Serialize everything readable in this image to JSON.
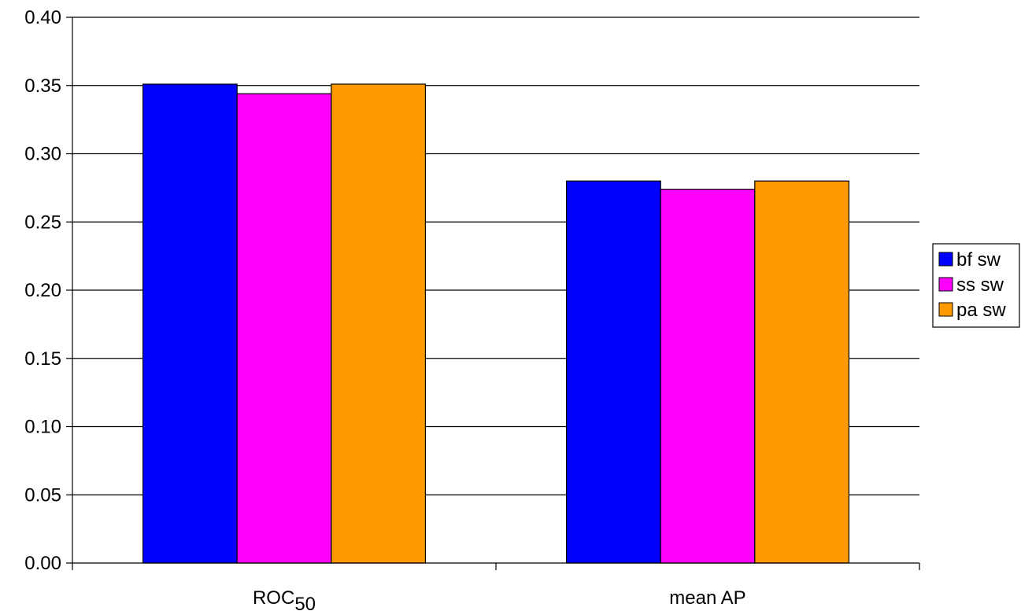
{
  "chart_data": {
    "type": "bar",
    "categories": [
      {
        "main": "ROC",
        "sub": "50"
      },
      {
        "main": "mean AP",
        "sub": ""
      }
    ],
    "series": [
      {
        "name": "bf sw",
        "color": "#0000FF",
        "values": [
          0.351,
          0.28
        ]
      },
      {
        "name": "ss sw",
        "color": "#FF00FF",
        "values": [
          0.344,
          0.274
        ]
      },
      {
        "name": "pa sw",
        "color": "#FF9900",
        "values": [
          0.351,
          0.28
        ]
      }
    ],
    "ylim": [
      0,
      0.4
    ],
    "yticks": [
      "0.00",
      "0.05",
      "0.10",
      "0.15",
      "0.20",
      "0.25",
      "0.30",
      "0.35",
      "0.40"
    ],
    "title": "",
    "xlabel": "",
    "ylabel": "",
    "grid": "horizontal",
    "legend_position": "right"
  }
}
